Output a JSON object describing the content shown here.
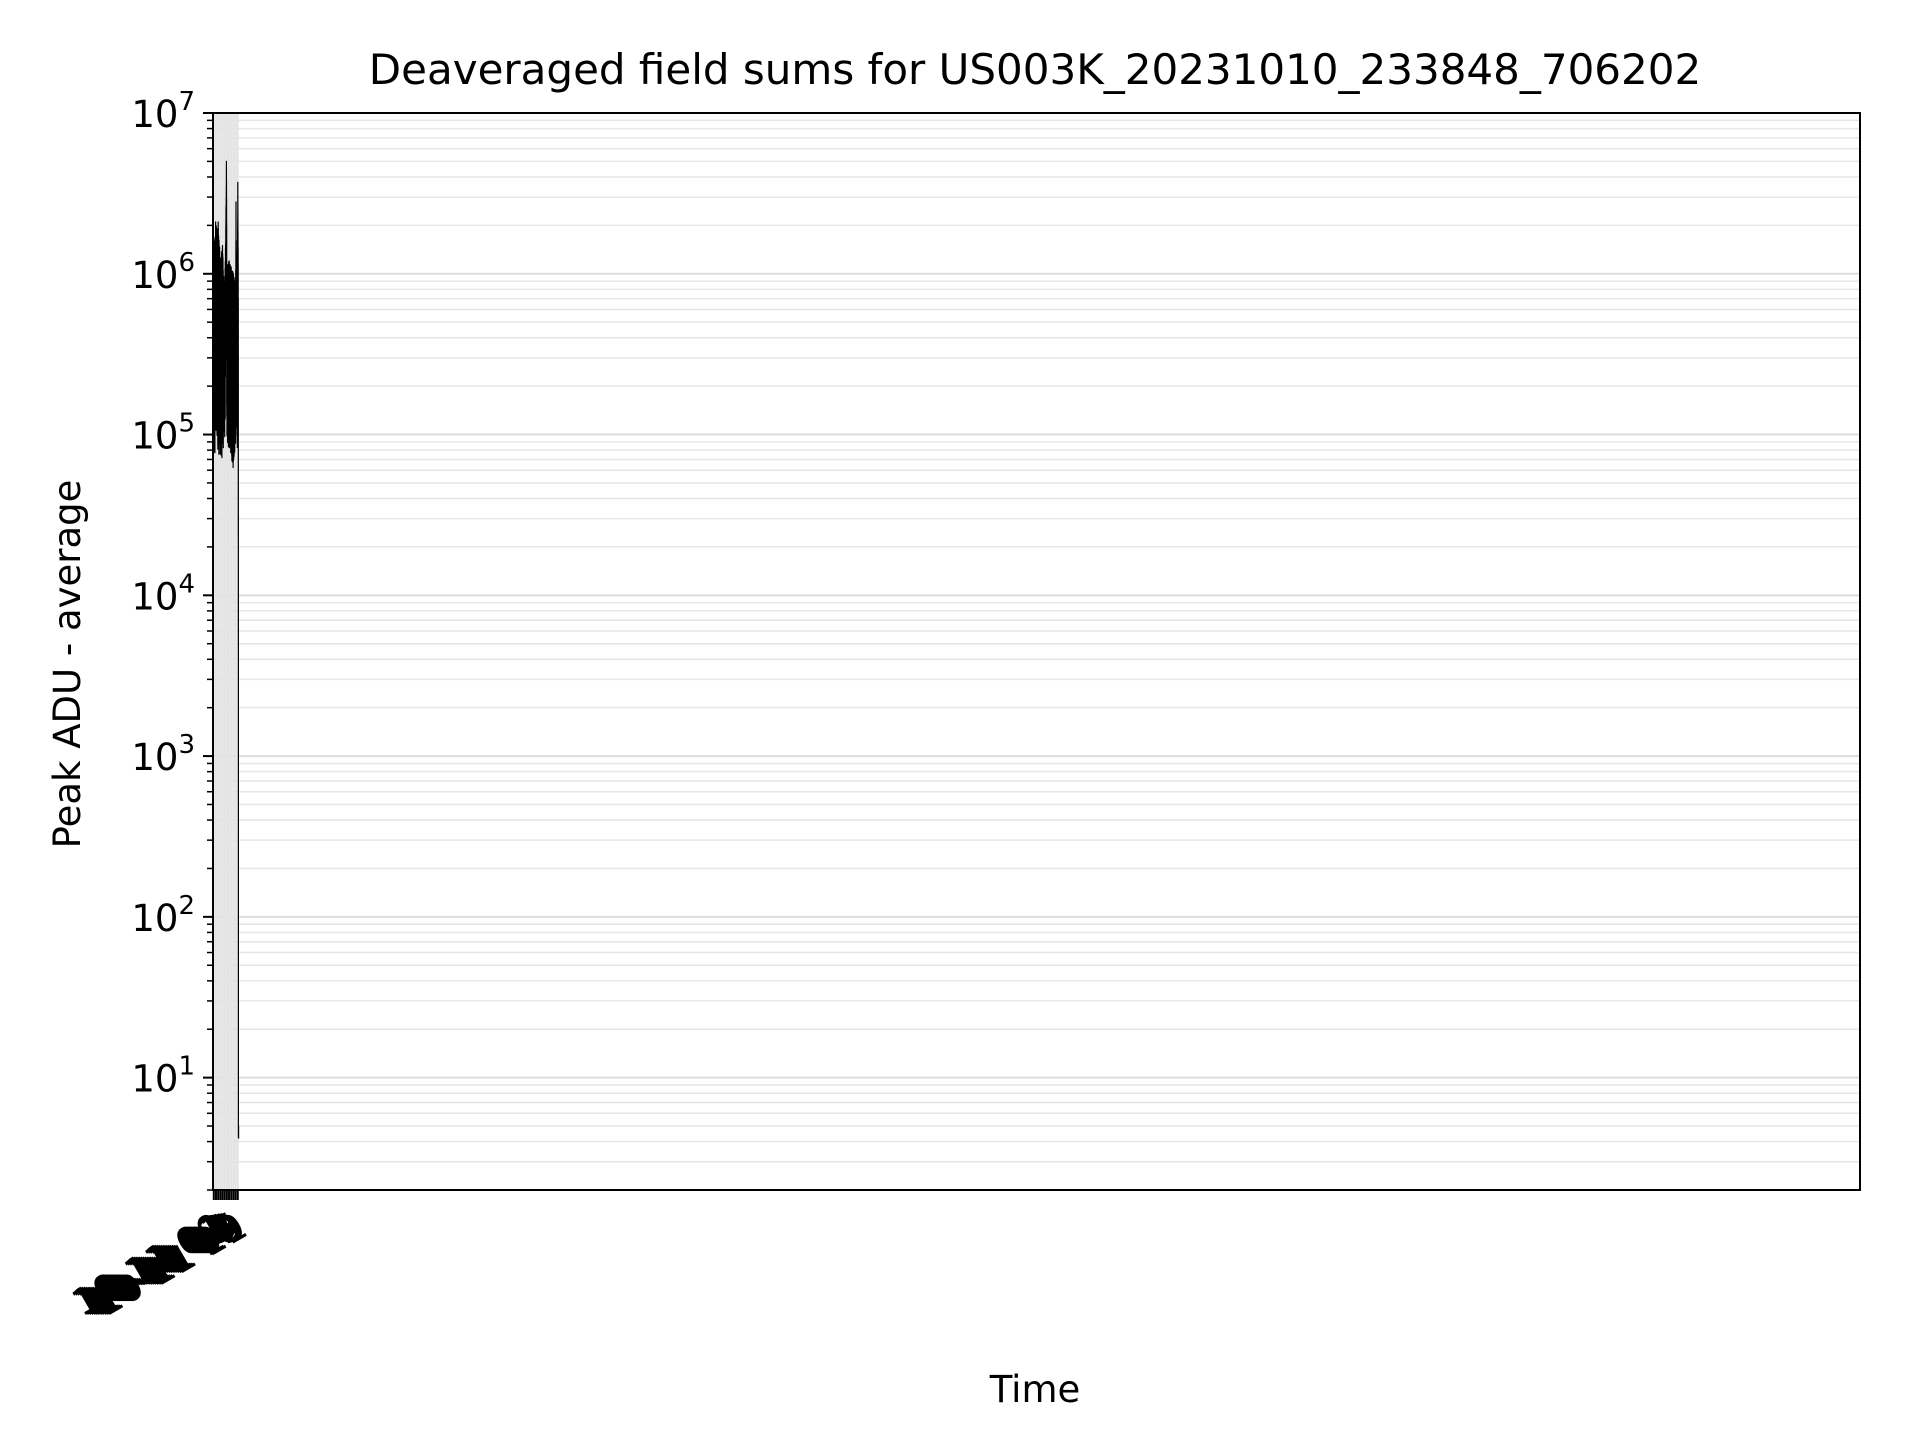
{
  "chart_data": {
    "type": "line",
    "title": "Deaveraged field sums for US003K_20231010_233848_706202",
    "xlabel": "Time",
    "ylabel": "Peak ADU - average",
    "yscale": "log",
    "ylim": [
      2,
      10000000
    ],
    "xlim": [
      "2023-10-10 23:38",
      "2023-11-11 11:23"
    ],
    "y_ticks": [
      {
        "base": "10",
        "exp": "1",
        "value": 10
      },
      {
        "base": "10",
        "exp": "2",
        "value": 100
      },
      {
        "base": "10",
        "exp": "3",
        "value": 1000
      },
      {
        "base": "10",
        "exp": "4",
        "value": 10000
      },
      {
        "base": "10",
        "exp": "5",
        "value": 100000
      },
      {
        "base": "10",
        "exp": "6",
        "value": 1000000
      },
      {
        "base": "10",
        "exp": "7",
        "value": 10000000
      }
    ],
    "x_ticks": [
      {
        "label": "10-11 00",
        "time": "2023-10-11 00:00"
      },
      {
        "label": "10-11 01",
        "time": "2023-10-11 01:00"
      },
      {
        "label": "10-11 02",
        "time": "2023-10-11 02:00"
      },
      {
        "label": "10-11 03",
        "time": "2023-10-11 03:00"
      },
      {
        "label": "10-11 04",
        "time": "2023-10-11 04:00"
      },
      {
        "label": "10-11 05",
        "time": "2023-10-11 05:00"
      },
      {
        "label": "10-11 06",
        "time": "2023-10-11 06:00"
      },
      {
        "label": "10-11 07",
        "time": "2023-10-11 07:00"
      },
      {
        "label": "10-11 08",
        "time": "2023-10-11 08:00"
      },
      {
        "label": "10-11 09",
        "time": "2023-10-11 09:00"
      },
      {
        "label": "10-11 10",
        "time": "2023-10-11 10:00"
      },
      {
        "label": "10-11 11",
        "time": "2023-10-11 11:00"
      }
    ],
    "grid": true,
    "series": [
      {
        "color": "#000000",
        "envelope": [
          {
            "t": "2023-10-10 23:39",
            "low": 9000,
            "high": 21000
          },
          {
            "t": "2023-10-10 23:42",
            "low": 14000,
            "high": 30000
          },
          {
            "t": "2023-10-10 23:45",
            "low": 20000,
            "high": 45000
          },
          {
            "t": "2023-10-10 23:48",
            "low": 40000,
            "high": 600000
          },
          {
            "t": "2023-10-10 23:52",
            "low": 60000,
            "high": 1000000
          },
          {
            "t": "2023-10-11 00:00",
            "low": 40000,
            "high": 900000
          },
          {
            "t": "2023-10-11 00:20",
            "low": 35000,
            "high": 1600000
          },
          {
            "t": "2023-10-11 00:40",
            "low": 50000,
            "high": 1700000
          },
          {
            "t": "2023-10-11 00:50",
            "low": 60000,
            "high": 2100000
          },
          {
            "t": "2023-10-11 01:30",
            "low": 60000,
            "high": 1900000
          },
          {
            "t": "2023-10-11 02:00",
            "low": 40000,
            "high": 2100000
          },
          {
            "t": "2023-10-11 03:00",
            "low": 40000,
            "high": 1200000
          },
          {
            "t": "2023-10-11 04:00",
            "low": 40000,
            "high": 1500000
          },
          {
            "t": "2023-10-11 05:00",
            "low": 60000,
            "high": 700000
          },
          {
            "t": "2023-10-11 05:35",
            "low": 180000,
            "high": 2400000
          },
          {
            "t": "2023-10-11 05:47",
            "low": 200000,
            "high": 5000000
          },
          {
            "t": "2023-10-11 06:00",
            "low": 50000,
            "high": 1100000
          },
          {
            "t": "2023-10-11 07:00",
            "low": 50000,
            "high": 1200000
          },
          {
            "t": "2023-10-11 08:00",
            "low": 40000,
            "high": 1100000
          },
          {
            "t": "2023-10-11 09:00",
            "low": 40000,
            "high": 1000000
          },
          {
            "t": "2023-10-11 09:40",
            "low": 50000,
            "high": 900000
          },
          {
            "t": "2023-10-11 10:00",
            "low": 55000,
            "high": 700000
          },
          {
            "t": "2023-10-11 10:12",
            "low": 60000,
            "high": 2800000
          },
          {
            "t": "2023-10-11 10:45",
            "low": 55000,
            "high": 300000
          },
          {
            "t": "2023-10-11 11:00",
            "low": 200000,
            "high": 3700000
          },
          {
            "t": "2023-10-11 11:10",
            "low": 1000000,
            "high": 1400000
          },
          {
            "t": "2023-10-11 11:15",
            "low": 100000,
            "high": 600000
          },
          {
            "t": "2023-10-11 11:17",
            "low": 80,
            "high": 80
          },
          {
            "t": "2023-10-11 11:18",
            "low": 4,
            "high": 5
          },
          {
            "t": "2023-10-11 11:23",
            "low": 4,
            "high": 5
          }
        ]
      }
    ]
  }
}
